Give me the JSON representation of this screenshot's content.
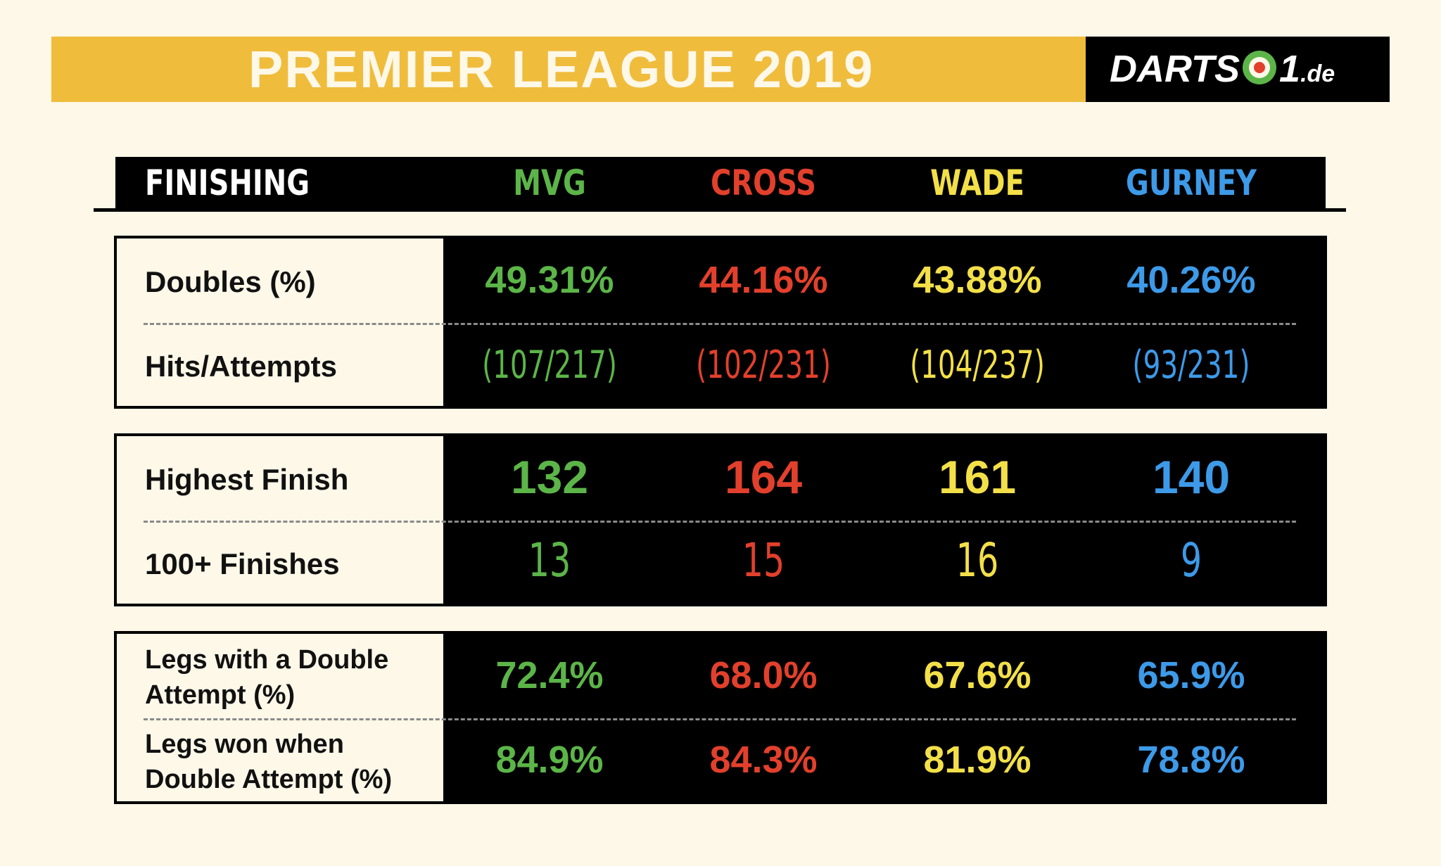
{
  "title": "PREMIER LEAGUE 2019",
  "logo": {
    "text_left": "DARTS",
    "text_mid": "1",
    "text_tld": ".de"
  },
  "colors": {
    "banner": "#f0bc3c",
    "background": "#fdf8e8",
    "mvg": "#5cb548",
    "cross": "#e2402c",
    "wade": "#f3e048",
    "gurney": "#3d9ae8"
  },
  "header": {
    "section": "FINISHING",
    "players": [
      "MVG",
      "CROSS",
      "WADE",
      "GURNEY"
    ]
  },
  "chart_data": {
    "type": "table",
    "title": "PREMIER LEAGUE 2019",
    "section": "FINISHING",
    "columns": [
      "MVG",
      "CROSS",
      "WADE",
      "GURNEY"
    ],
    "rows": [
      {
        "label": "Doubles (%)",
        "values": [
          "49.31%",
          "44.16%",
          "43.88%",
          "40.26%"
        ]
      },
      {
        "label": "Hits/Attempts",
        "values": [
          "(107/217)",
          "(102/231)",
          "(104/237)",
          "(93/231)"
        ]
      },
      {
        "label": "Highest Finish",
        "values": [
          "132",
          "164",
          "161",
          "140"
        ]
      },
      {
        "label": "100+ Finishes",
        "values": [
          "13",
          "15",
          "16",
          "9"
        ]
      },
      {
        "label": "Legs with a Double Attempt (%)",
        "values": [
          "72.4%",
          "68.0%",
          "67.6%",
          "65.9%"
        ]
      },
      {
        "label": "Legs won when Double Attempt (%)",
        "values": [
          "84.9%",
          "84.3%",
          "81.9%",
          "78.8%"
        ]
      }
    ]
  }
}
